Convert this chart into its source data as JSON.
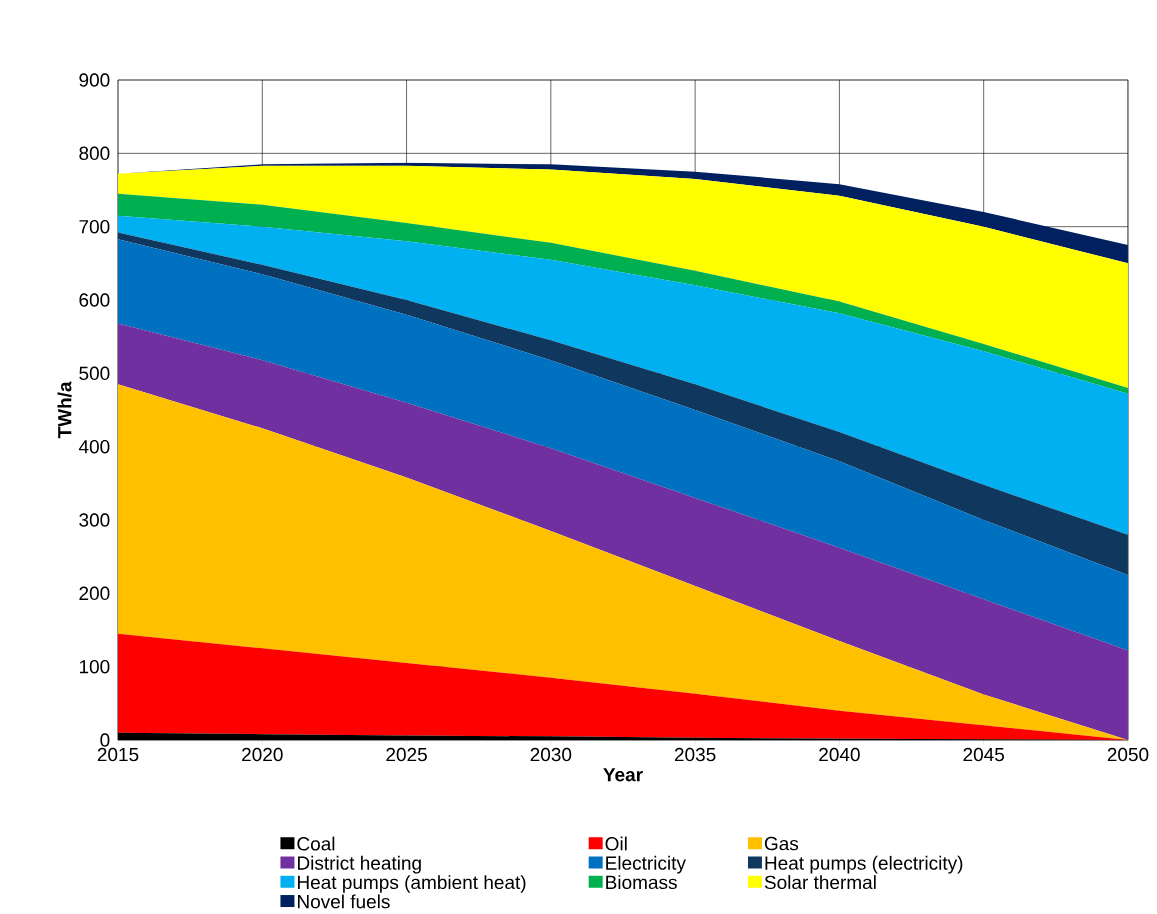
{
  "chart_data": {
    "type": "area",
    "stacked": true,
    "xlabel": "Year",
    "ylabel": "TWh/a",
    "x": [
      2015,
      2020,
      2025,
      2030,
      2035,
      2040,
      2045,
      2050
    ],
    "xlim": [
      2015,
      2050
    ],
    "xticks": [
      2015,
      2020,
      2025,
      2030,
      2035,
      2040,
      2045,
      2050
    ],
    "ylim": [
      0,
      900
    ],
    "yticks": [
      0,
      100,
      200,
      300,
      400,
      500,
      600,
      700,
      800,
      900
    ],
    "grid": true,
    "legend": "bottom",
    "series": [
      {
        "name": "Coal",
        "color": "#000000",
        "values": [
          10,
          8,
          6,
          5,
          3,
          2,
          1,
          0
        ]
      },
      {
        "name": "Oil",
        "color": "#ff0000",
        "values": [
          135,
          117,
          99,
          80,
          60,
          38,
          19,
          0
        ]
      },
      {
        "name": "Gas",
        "color": "#ffc000",
        "values": [
          340,
          300,
          253,
          200,
          147,
          95,
          42,
          0
        ]
      },
      {
        "name": "District heating",
        "color": "#7030a0",
        "values": [
          83,
          93,
          102,
          113,
          120,
          127,
          130,
          122
        ]
      },
      {
        "name": "Electricity",
        "color": "#0070c0",
        "values": [
          115,
          117,
          120,
          120,
          120,
          118,
          108,
          103
        ]
      },
      {
        "name": "Heat pumps (electricity)",
        "color": "#10385f",
        "values": [
          9,
          13,
          20,
          27,
          35,
          40,
          48,
          55
        ]
      },
      {
        "name": "Heat pumps (ambient heat)",
        "color": "#00b0f0",
        "values": [
          23,
          52,
          80,
          110,
          135,
          162,
          182,
          192
        ]
      },
      {
        "name": "Biomass",
        "color": "#00b050",
        "values": [
          30,
          30,
          25,
          23,
          20,
          16,
          10,
          8
        ]
      },
      {
        "name": "Solar thermal",
        "color": "#ffff00",
        "values": [
          27,
          53,
          78,
          100,
          125,
          144,
          160,
          170
        ]
      },
      {
        "name": "Novel fuels",
        "color": "#002060",
        "values": [
          0,
          2,
          4,
          7,
          10,
          16,
          20,
          25
        ]
      }
    ]
  }
}
